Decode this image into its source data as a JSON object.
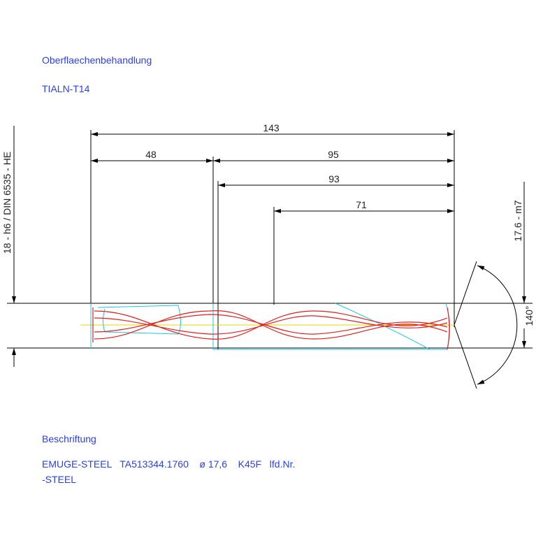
{
  "surface": {
    "heading": "Oberflaechenbehandlung",
    "value": "TIALN-T14"
  },
  "dimensions": {
    "total": "143",
    "shank": "48",
    "body": "95",
    "flute": "93",
    "cutting": "71",
    "shank_diameter": "18 - h6 / DIN 6535 - HE",
    "cutting_diameter": "17.6 - m7",
    "point_angle": "140°"
  },
  "marking": {
    "heading": "Beschriftung",
    "line1": "EMUGE-STEEL   TA513344.1760    ø 17,6    K45F   lfd.Nr.",
    "line2": "-STEEL"
  }
}
